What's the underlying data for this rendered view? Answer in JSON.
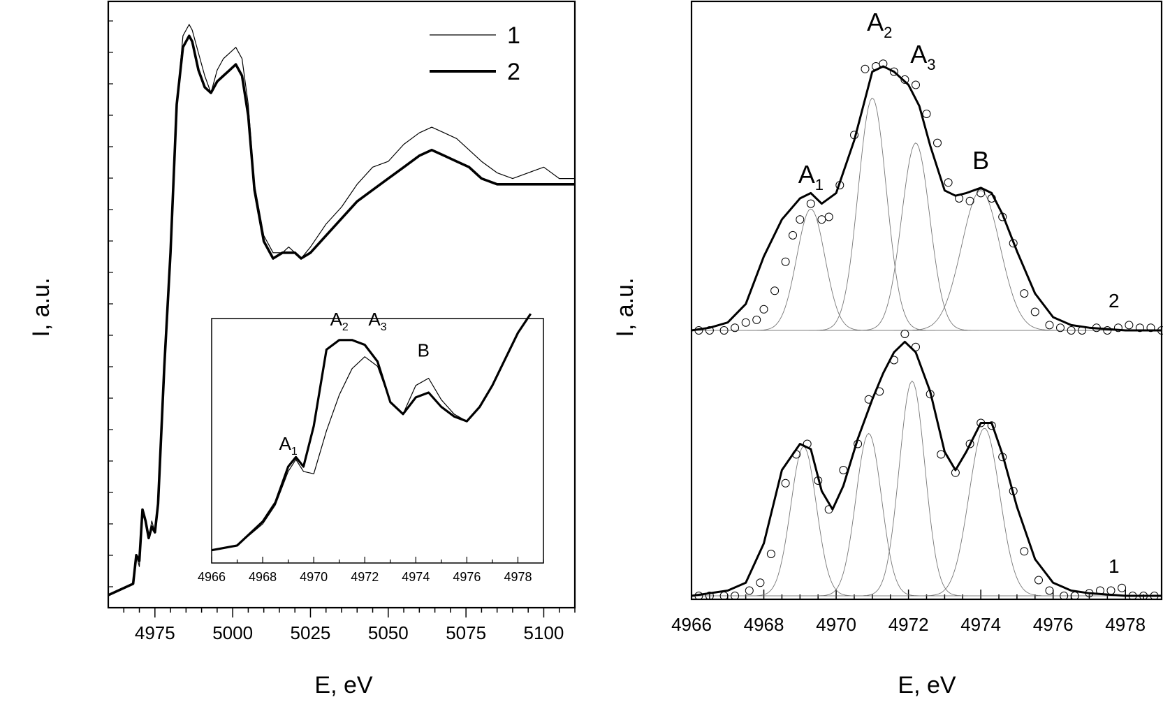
{
  "chart_data": [
    {
      "type": "line",
      "panel": "left",
      "ylabel": "I, a.u.",
      "xlabel": "E, eV",
      "xlim": [
        4960,
        5110
      ],
      "ylim": [
        0,
        1
      ],
      "x_ticks": [
        "4975",
        "5000",
        "5025",
        "5050",
        "5075",
        "5100"
      ],
      "legend": {
        "position": "top-right",
        "entries": [
          {
            "label": "1",
            "line": "thin"
          },
          {
            "label": "2",
            "line": "thick"
          }
        ]
      },
      "series": [
        {
          "name": "1",
          "x": [
            4960,
            4968,
            4969,
            4970,
            4971,
            4972,
            4973,
            4974,
            4975,
            4976,
            4978,
            4980,
            4982,
            4984,
            4986,
            4987,
            4989,
            4991,
            4993,
            4995,
            4997,
            4999,
            5001,
            5003,
            5005,
            5007,
            5010,
            5013,
            5016,
            5018,
            5020,
            5022,
            5025,
            5030,
            5035,
            5040,
            5045,
            5050,
            5055,
            5060,
            5064,
            5068,
            5072,
            5076,
            5080,
            5085,
            5090,
            5095,
            5100,
            5105,
            5110
          ],
          "y": [
            0.0,
            0.02,
            0.07,
            0.05,
            0.15,
            0.13,
            0.1,
            0.13,
            0.11,
            0.16,
            0.4,
            0.6,
            0.86,
            0.98,
            1.0,
            0.99,
            0.95,
            0.91,
            0.88,
            0.92,
            0.94,
            0.95,
            0.96,
            0.94,
            0.86,
            0.72,
            0.63,
            0.6,
            0.6,
            0.61,
            0.6,
            0.59,
            0.61,
            0.65,
            0.68,
            0.72,
            0.75,
            0.76,
            0.79,
            0.81,
            0.82,
            0.81,
            0.8,
            0.78,
            0.76,
            0.74,
            0.73,
            0.74,
            0.75,
            0.73,
            0.73
          ]
        },
        {
          "name": "2",
          "x": [
            4960,
            4968,
            4969,
            4970,
            4971,
            4972,
            4973,
            4974,
            4975,
            4976,
            4978,
            4980,
            4982,
            4984,
            4986,
            4987,
            4989,
            4991,
            4993,
            4995,
            4997,
            4999,
            5001,
            5003,
            5005,
            5007,
            5010,
            5013,
            5016,
            5018,
            5020,
            5022,
            5025,
            5030,
            5035,
            5040,
            5045,
            5050,
            5055,
            5060,
            5064,
            5068,
            5072,
            5076,
            5080,
            5085,
            5090,
            5095,
            5100,
            5105,
            5110
          ],
          "y": [
            0.0,
            0.02,
            0.07,
            0.06,
            0.15,
            0.13,
            0.1,
            0.12,
            0.11,
            0.16,
            0.4,
            0.6,
            0.86,
            0.96,
            0.98,
            0.97,
            0.92,
            0.89,
            0.88,
            0.9,
            0.91,
            0.92,
            0.93,
            0.91,
            0.84,
            0.71,
            0.62,
            0.59,
            0.6,
            0.6,
            0.6,
            0.59,
            0.6,
            0.63,
            0.66,
            0.69,
            0.71,
            0.73,
            0.75,
            0.77,
            0.78,
            0.77,
            0.76,
            0.75,
            0.73,
            0.72,
            0.72,
            0.72,
            0.72,
            0.72,
            0.72
          ]
        }
      ],
      "inset": {
        "x_ticks": [
          "4966",
          "4968",
          "4970",
          "4972",
          "4974",
          "4976",
          "4978"
        ],
        "xlim": [
          4966,
          4979
        ],
        "annotations": [
          {
            "text": "A",
            "sub": "1",
            "x": 4969.0,
            "y": 0.41
          },
          {
            "text": "A",
            "sub": "2",
            "x": 4971.0,
            "y": 0.93
          },
          {
            "text": "A",
            "sub": "3",
            "x": 4972.5,
            "y": 0.93
          },
          {
            "text": "B",
            "x": 4974.3,
            "y": 0.8
          }
        ],
        "series": [
          {
            "name": "1",
            "x": [
              4966,
              4967,
              4968,
              4968.5,
              4969,
              4969.3,
              4969.6,
              4970,
              4970.5,
              4971,
              4971.5,
              4972,
              4972.5,
              4973,
              4973.5,
              4974,
              4974.5,
              4975,
              4975.5,
              4976,
              4976.5,
              4977,
              4977.5,
              4978,
              4978.5
            ],
            "y": [
              0.03,
              0.05,
              0.14,
              0.22,
              0.36,
              0.41,
              0.36,
              0.35,
              0.53,
              0.68,
              0.79,
              0.84,
              0.8,
              0.65,
              0.6,
              0.72,
              0.75,
              0.66,
              0.6,
              0.57,
              0.63,
              0.72,
              0.83,
              0.94,
              1.02
            ]
          },
          {
            "name": "2",
            "x": [
              4966,
              4967,
              4968,
              4968.5,
              4969,
              4969.3,
              4969.6,
              4970,
              4970.5,
              4971,
              4971.5,
              4972,
              4972.5,
              4973,
              4973.5,
              4974,
              4974.5,
              4975,
              4975.5,
              4976,
              4976.5,
              4977,
              4977.5,
              4978,
              4978.5
            ],
            "y": [
              0.03,
              0.05,
              0.15,
              0.23,
              0.38,
              0.42,
              0.38,
              0.55,
              0.87,
              0.91,
              0.91,
              0.89,
              0.82,
              0.65,
              0.6,
              0.67,
              0.69,
              0.63,
              0.59,
              0.57,
              0.63,
              0.72,
              0.83,
              0.94,
              1.02
            ]
          }
        ]
      }
    },
    {
      "type": "line",
      "panel": "right",
      "ylabel": "I, a.u.",
      "xlabel": "E, eV",
      "xlim": [
        4966,
        4979
      ],
      "x_ticks": [
        "4966",
        "4968",
        "4970",
        "4972",
        "4974",
        "4976",
        "4978"
      ],
      "annotations": [
        {
          "text": "A",
          "sub": "1",
          "x": 4969.3,
          "y_in": "top"
        },
        {
          "text": "A",
          "sub": "2",
          "x": 4971.2,
          "y_in": "top"
        },
        {
          "text": "A",
          "sub": "3",
          "x": 4972.4,
          "y_in": "top"
        },
        {
          "text": "B",
          "x": 4974.0,
          "y_in": "top"
        }
      ],
      "spectra": [
        {
          "label": "2",
          "fit_sum": {
            "x": [
              4966.0,
              4966.5,
              4967.0,
              4967.5,
              4968.0,
              4968.5,
              4969.0,
              4969.3,
              4969.6,
              4970.0,
              4970.5,
              4971.0,
              4971.3,
              4971.6,
              4972.0,
              4972.3,
              4972.6,
              4973.0,
              4973.3,
              4973.6,
              4974.0,
              4974.3,
              4974.6,
              4975.0,
              4975.5,
              4976.0,
              4976.5,
              4977.0,
              4978.0,
              4979.0
            ],
            "y": [
              0.0,
              0.01,
              0.03,
              0.1,
              0.28,
              0.42,
              0.5,
              0.52,
              0.48,
              0.52,
              0.72,
              0.98,
              1.0,
              0.98,
              0.93,
              0.85,
              0.7,
              0.53,
              0.51,
              0.52,
              0.54,
              0.52,
              0.44,
              0.3,
              0.14,
              0.05,
              0.02,
              0.01,
              0.0,
              0.0
            ]
          },
          "components": [
            {
              "center": 4969.3,
              "height": 0.46,
              "width": 0.55
            },
            {
              "center": 4971.0,
              "height": 0.88,
              "width": 0.55
            },
            {
              "center": 4972.2,
              "height": 0.71,
              "width": 0.55
            },
            {
              "center": 4974.0,
              "height": 0.53,
              "width": 0.75
            }
          ],
          "points": {
            "x": [
              4966.2,
              4966.5,
              4966.9,
              4967.2,
              4967.5,
              4967.8,
              4968.0,
              4968.3,
              4968.6,
              4968.8,
              4969.0,
              4969.3,
              4969.6,
              4969.8,
              4970.1,
              4970.5,
              4970.8,
              4971.1,
              4971.3,
              4971.6,
              4971.9,
              4972.2,
              4972.5,
              4972.8,
              4973.1,
              4973.4,
              4973.7,
              4974.0,
              4974.3,
              4974.6,
              4974.9,
              4975.2,
              4975.5,
              4975.9,
              4976.2,
              4976.5,
              4976.8,
              4977.2,
              4977.5,
              4977.8,
              4978.1,
              4978.4,
              4978.7,
              4979.0
            ],
            "y": [
              0.0,
              0.0,
              0.0,
              0.01,
              0.03,
              0.04,
              0.08,
              0.15,
              0.26,
              0.36,
              0.42,
              0.48,
              0.42,
              0.43,
              0.55,
              0.74,
              0.99,
              1.0,
              1.01,
              0.98,
              0.95,
              0.93,
              0.82,
              0.71,
              0.56,
              0.5,
              0.49,
              0.52,
              0.5,
              0.43,
              0.33,
              0.14,
              0.07,
              0.02,
              0.01,
              0.0,
              0.0,
              0.01,
              0.0,
              0.01,
              0.02,
              0.01,
              0.01,
              0.0
            ]
          }
        },
        {
          "label": "1",
          "fit_sum": {
            "x": [
              4966.0,
              4966.5,
              4967.0,
              4967.5,
              4968.0,
              4968.5,
              4969.0,
              4969.3,
              4969.6,
              4969.9,
              4970.2,
              4970.6,
              4971.0,
              4971.3,
              4971.6,
              4971.9,
              4972.2,
              4972.6,
              4973.0,
              4973.3,
              4973.6,
              4974.0,
              4974.3,
              4974.6,
              4975.0,
              4975.5,
              4976.0,
              4976.5,
              4977.0,
              4978.0,
              4979.0
            ],
            "y": [
              0.0,
              0.01,
              0.02,
              0.05,
              0.2,
              0.48,
              0.58,
              0.56,
              0.4,
              0.33,
              0.42,
              0.6,
              0.75,
              0.85,
              0.93,
              0.97,
              0.93,
              0.78,
              0.55,
              0.48,
              0.55,
              0.66,
              0.66,
              0.54,
              0.34,
              0.14,
              0.05,
              0.02,
              0.01,
              0.0,
              0.0
            ]
          },
          "components": [
            {
              "center": 4969.1,
              "height": 0.57,
              "width": 0.5
            },
            {
              "center": 4970.9,
              "height": 0.62,
              "width": 0.5
            },
            {
              "center": 4972.1,
              "height": 0.82,
              "width": 0.5
            },
            {
              "center": 4974.1,
              "height": 0.64,
              "width": 0.6
            }
          ],
          "points": {
            "x": [
              4966.2,
              4966.5,
              4966.9,
              4967.2,
              4967.6,
              4967.9,
              4968.2,
              4968.6,
              4968.9,
              4969.2,
              4969.5,
              4969.8,
              4970.2,
              4970.6,
              4970.9,
              4971.2,
              4971.6,
              4971.9,
              4972.2,
              4972.6,
              4972.9,
              4973.3,
              4973.7,
              4974.0,
              4974.3,
              4974.6,
              4974.9,
              4975.2,
              4975.6,
              4975.9,
              4976.3,
              4976.6,
              4977.0,
              4977.3,
              4977.6,
              4977.9,
              4978.2,
              4978.5,
              4978.8
            ],
            "y": [
              0.0,
              0.0,
              0.0,
              0.0,
              0.02,
              0.05,
              0.16,
              0.43,
              0.54,
              0.58,
              0.44,
              0.33,
              0.48,
              0.58,
              0.75,
              0.78,
              0.9,
              1.0,
              0.95,
              0.77,
              0.54,
              0.47,
              0.58,
              0.66,
              0.65,
              0.53,
              0.4,
              0.17,
              0.06,
              0.02,
              0.0,
              0.0,
              0.01,
              0.02,
              0.02,
              0.03,
              0.0,
              0.0,
              0.0
            ]
          }
        }
      ]
    }
  ]
}
